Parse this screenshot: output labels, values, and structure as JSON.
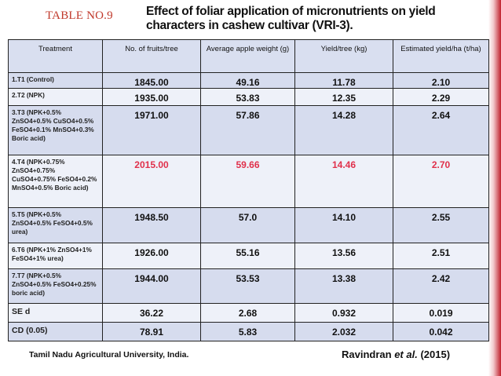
{
  "slide": {
    "table_number": "TABLE NO.9",
    "title_line1": "Effect of foliar application of micronutrients on yield",
    "title_line2": "characters in cashew cultivar (VRI-3)."
  },
  "table": {
    "headers": [
      "Treatment",
      "No. of fruits/tree",
      "Average apple weight (g)",
      "Yield/tree (kg)",
      "Estimated yield/ha (t/ha)"
    ],
    "rows": [
      {
        "treatment": "1.T1 (Control)",
        "fruits": "1845.00",
        "apple_weight": "49.16",
        "yield_tree": "11.78",
        "yield_ha": "2.10"
      },
      {
        "treatment": "2.T2 (NPK)",
        "fruits": "1935.00",
        "apple_weight": "53.83",
        "yield_tree": "12.35",
        "yield_ha": "2.29"
      },
      {
        "treatment": "3.T3 (NPK+0.5% ZnSO4+0.5% CuSO4+0.5% FeSO4+0.1% MnSO4+0.3% Boric acid)",
        "fruits": "1971.00",
        "apple_weight": "57.86",
        "yield_tree": "14.28",
        "yield_ha": "2.64"
      },
      {
        "treatment": "4.T4 (NPK+0.75% ZnSO4+0.75% CuSO4+0.75% FeSO4+0.2% MnSO4+0.5% Boric acid)",
        "fruits": "2015.00",
        "apple_weight": "59.66",
        "yield_tree": "14.46",
        "yield_ha": "2.70"
      },
      {
        "treatment": "5.T5 (NPK+0.5% ZnSO4+0.5% FeSO4+0.5% urea)",
        "fruits": "1948.50",
        "apple_weight": "57.0",
        "yield_tree": "14.10",
        "yield_ha": "2.55"
      },
      {
        "treatment": "6.T6 (NPK+1% ZnSO4+1% FeSO4+1% urea)",
        "fruits": "1926.00",
        "apple_weight": "55.16",
        "yield_tree": "13.56",
        "yield_ha": "2.51"
      },
      {
        "treatment": "7.T7 (NPK+0.5% ZnSO4+0.5% FeSO4+0.25% boric acid)",
        "fruits": "1944.00",
        "apple_weight": "53.53",
        "yield_tree": "13.38",
        "yield_ha": "2.42"
      }
    ],
    "sed": {
      "label": "SE d",
      "fruits": "36.22",
      "apple_weight": "2.68",
      "yield_tree": "0.932",
      "yield_ha": "0.019"
    },
    "cd": {
      "label": "CD (0.05)",
      "fruits": "78.91",
      "apple_weight": "5.83",
      "yield_tree": "2.032",
      "yield_ha": "0.042"
    }
  },
  "footer": {
    "institution": "Tamil Nadu Agricultural University, India.",
    "citation_author": "Ravindran",
    "citation_etal": "et al.",
    "citation_year": "(2015)"
  },
  "colors": {
    "highlight": "#e0304b",
    "table_number": "#c0392b",
    "row_dark": "#d6dcee",
    "row_light": "#eef1f9"
  }
}
